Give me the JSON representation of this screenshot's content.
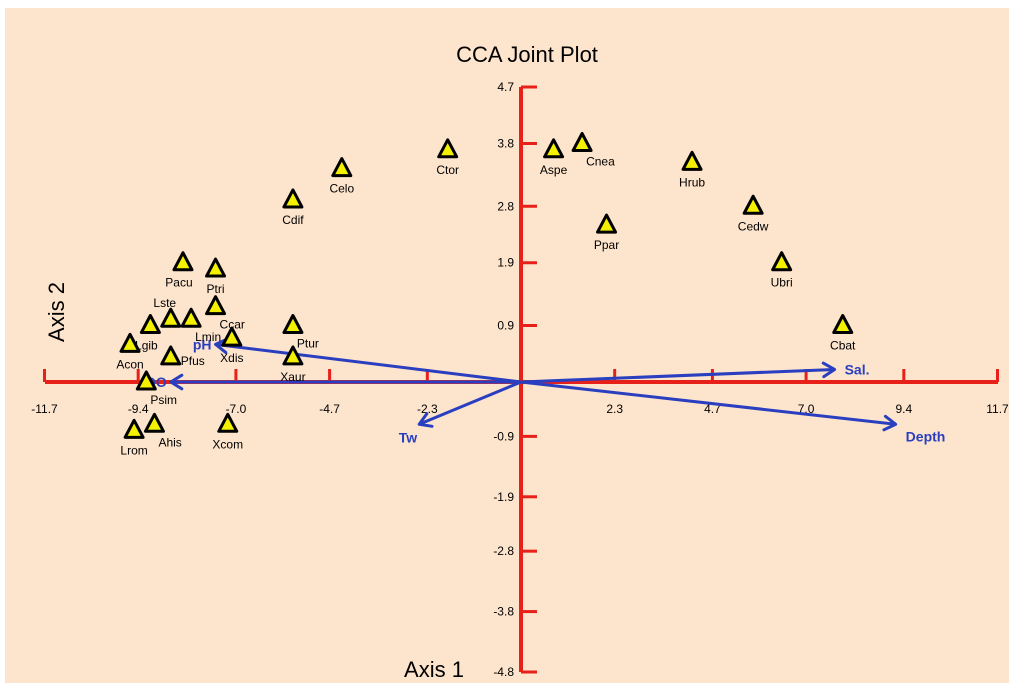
{
  "chart_data": {
    "type": "scatter",
    "title": "CCA Joint Plot",
    "xlabel": "Axis 1",
    "ylabel": "Axis 2",
    "xlim": [
      -11.7,
      11.7
    ],
    "ylim": [
      -4.8,
      4.7
    ],
    "x_ticks": [
      -11.7,
      -9.4,
      -7.0,
      -4.7,
      -2.3,
      2.3,
      4.7,
      7.0,
      9.4,
      11.7
    ],
    "x_tick_labels": [
      "-11.7",
      "-9.4",
      "-7.0",
      "-4.7",
      "-2.3",
      "2.3",
      "4.7",
      "7.0",
      "9.4",
      "11.7"
    ],
    "y_ticks": [
      4.7,
      3.8,
      2.8,
      1.9,
      0.9,
      -0.9,
      -1.9,
      -2.8,
      -3.8,
      -4.8
    ],
    "y_tick_labels": [
      "4.7",
      "3.8",
      "2.8",
      "1.9",
      "0.9",
      "-0.9",
      "-1.9",
      "-2.8",
      "-3.8",
      "-4.8"
    ],
    "grid": false,
    "colors": {
      "axis": "#e8201a",
      "vector": "#2a3fc0",
      "marker_fill": "#f3f000",
      "marker_edge": "#000000",
      "background": "#fde4cc"
    },
    "species": [
      {
        "label": "Celo",
        "x": -4.4,
        "y": 3.4,
        "label_pos": "below"
      },
      {
        "label": "Cdif",
        "x": -5.6,
        "y": 2.9,
        "label_pos": "below"
      },
      {
        "label": "Ctor",
        "x": -1.8,
        "y": 3.7,
        "label_pos": "below"
      },
      {
        "label": "Aspe",
        "x": 0.8,
        "y": 3.7,
        "label_pos": "below"
      },
      {
        "label": "Cnea",
        "x": 1.5,
        "y": 3.8,
        "label_pos": "below-right"
      },
      {
        "label": "Hrub",
        "x": 4.2,
        "y": 3.5,
        "label_pos": "below"
      },
      {
        "label": "Cedw",
        "x": 5.7,
        "y": 2.8,
        "label_pos": "below"
      },
      {
        "label": "Ppar",
        "x": 2.1,
        "y": 2.5,
        "label_pos": "below"
      },
      {
        "label": "Ubri",
        "x": 6.4,
        "y": 1.9,
        "label_pos": "below"
      },
      {
        "label": "Cbat",
        "x": 7.9,
        "y": 0.9,
        "label_pos": "below"
      },
      {
        "label": "Pacu",
        "x": -8.3,
        "y": 1.9,
        "label_pos": "below-left"
      },
      {
        "label": "Ptri",
        "x": -7.5,
        "y": 1.8,
        "label_pos": "below"
      },
      {
        "label": "Lste",
        "x": -8.6,
        "y": 1.0,
        "label_pos": "above-left"
      },
      {
        "label": "Lgib",
        "x": -9.1,
        "y": 0.9,
        "label_pos": "below-left"
      },
      {
        "label": "Lmin",
        "x": -8.1,
        "y": 1.0,
        "label_pos": "below-right"
      },
      {
        "label": "Ccar",
        "x": -7.5,
        "y": 1.2,
        "label_pos": "below-right"
      },
      {
        "label": "Xdis",
        "x": -7.1,
        "y": 0.7,
        "label_pos": "below"
      },
      {
        "label": "Ptur",
        "x": -5.6,
        "y": 0.9,
        "label_pos": "below-right"
      },
      {
        "label": "Acon",
        "x": -9.6,
        "y": 0.6,
        "label_pos": "below"
      },
      {
        "label": "Pfus",
        "x": -8.6,
        "y": 0.4,
        "label_pos": "right"
      },
      {
        "label": "Xaur",
        "x": -5.6,
        "y": 0.4,
        "label_pos": "below"
      },
      {
        "label": "Psim",
        "x": -9.2,
        "y": 0.0,
        "label_pos": "below-right"
      },
      {
        "label": "Lrom",
        "x": -9.5,
        "y": -0.8,
        "label_pos": "below"
      },
      {
        "label": "Ahis",
        "x": -9.0,
        "y": -0.7,
        "label_pos": "below-right"
      },
      {
        "label": "Xcom",
        "x": -7.2,
        "y": -0.7,
        "label_pos": "below"
      }
    ],
    "vectors": [
      {
        "label": "pH",
        "x": -7.5,
        "y": 0.6,
        "label_pos": "left"
      },
      {
        "label": "DO",
        "x": -8.6,
        "y": 0.0,
        "label_pos": "left"
      },
      {
        "label": "Tw",
        "x": -2.5,
        "y": -0.7,
        "label_pos": "below-left"
      },
      {
        "label": "Sal.",
        "x": 7.7,
        "y": 0.2,
        "label_pos": "right"
      },
      {
        "label": "Depth",
        "x": 9.2,
        "y": -0.7,
        "label_pos": "below-right"
      }
    ]
  }
}
